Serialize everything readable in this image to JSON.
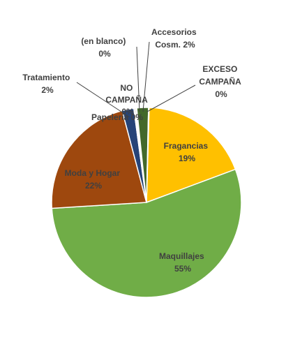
{
  "chart_data": {
    "type": "pie",
    "title": "",
    "slices": [
      {
        "name": "Fragancias",
        "value": 19,
        "display": "19%",
        "color": "#FFC000"
      },
      {
        "name": "Maquillajes",
        "value": 55,
        "display": "55%",
        "color": "#70AD47"
      },
      {
        "name": "Moda y Hogar",
        "value": 22,
        "display": "22%",
        "color": "#9E480E"
      },
      {
        "name": "Tratamiento",
        "value": 2,
        "display": "2%",
        "color": "#264478"
      },
      {
        "name": "Papeleria",
        "value": 0.2,
        "display": "0%",
        "color": "#636363"
      },
      {
        "name": "NO CAMPAÑA",
        "value": 0.2,
        "display": "0%",
        "color": "#997300"
      },
      {
        "name": "(en blanco)",
        "value": 0.1,
        "display": "0%",
        "color": "#A5A5A5"
      },
      {
        "name": "Accesorios Cosm.",
        "value": 2,
        "display": "2%",
        "color": "#43682B"
      },
      {
        "name": "EXCESO CAMPAÑA",
        "value": 0.1,
        "display": "0%",
        "color": "#A9D18E"
      }
    ],
    "labels": {
      "fragancias": {
        "name": "Fragancias",
        "pct": "19%"
      },
      "maquillajes": {
        "name": "Maquillajes",
        "pct": "55%"
      },
      "moda": {
        "name": "Moda y Hogar",
        "pct": "22%"
      },
      "tratamiento": {
        "name": "Tratamiento",
        "pct": "2%"
      },
      "blanco": {
        "name": "(en blanco)",
        "pct": "0%"
      },
      "accesorios": {
        "line1": "Accesorios",
        "line2": "Cosm. 2%"
      },
      "exceso": {
        "line1": "EXCESO",
        "line2": "CAMPAÑA",
        "pct": "0%"
      },
      "nocampana": {
        "line1": "NO",
        "line2": "CAMPAÑA",
        "pct": "0%"
      },
      "papeleria": {
        "name": "Papeleria 0%"
      }
    },
    "legend": "none"
  }
}
